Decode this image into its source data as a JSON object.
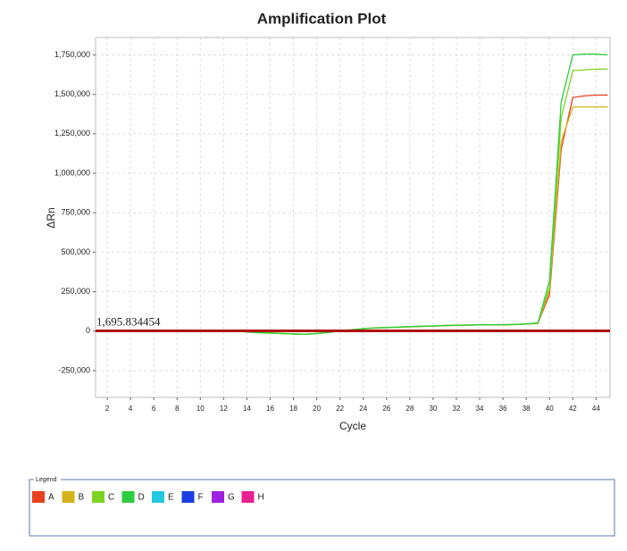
{
  "chart_data": {
    "type": "line",
    "title": "Amplification Plot",
    "x_label": "Cycle",
    "y_label": "ΔRn",
    "x": [
      1,
      2,
      3,
      4,
      5,
      6,
      7,
      8,
      9,
      10,
      11,
      12,
      13,
      14,
      15,
      16,
      17,
      18,
      19,
      20,
      21,
      22,
      23,
      24,
      25,
      26,
      27,
      28,
      29,
      30,
      31,
      32,
      33,
      34,
      35,
      36,
      37,
      38,
      39,
      40,
      41,
      42,
      43,
      44,
      45
    ],
    "series": [
      {
        "name": "A",
        "color": "#e8401c",
        "values": [
          0,
          0,
          0,
          0,
          0,
          0,
          0,
          0,
          0,
          0,
          0,
          0,
          0,
          -5000,
          -10000,
          -12000,
          -15000,
          -18000,
          -20000,
          -15000,
          -8000,
          0,
          8000,
          15000,
          20000,
          22000,
          25000,
          28000,
          30000,
          32000,
          35000,
          37000,
          38000,
          40000,
          40000,
          40000,
          42000,
          45000,
          50000,
          230000,
          1150000,
          1480000,
          1490000,
          1495000,
          1495000
        ]
      },
      {
        "name": "B",
        "color": "#d4b21a",
        "values": [
          0,
          0,
          0,
          0,
          0,
          0,
          0,
          0,
          0,
          0,
          0,
          0,
          0,
          -4000,
          -9000,
          -11000,
          -14000,
          -17000,
          -19000,
          -14000,
          -7000,
          0,
          7000,
          14000,
          19000,
          21000,
          24000,
          27000,
          29000,
          31000,
          34000,
          36000,
          37000,
          39000,
          39000,
          40000,
          41000,
          44000,
          48000,
          260000,
          1200000,
          1420000,
          1420000,
          1420000,
          1420000
        ]
      },
      {
        "name": "C",
        "color": "#7ed321",
        "values": [
          0,
          0,
          0,
          0,
          0,
          0,
          0,
          0,
          0,
          0,
          0,
          0,
          0,
          -6000,
          -11000,
          -13000,
          -16000,
          -19000,
          -21000,
          -16000,
          -9000,
          0,
          9000,
          16000,
          21000,
          23000,
          26000,
          29000,
          31000,
          33000,
          36000,
          38000,
          39000,
          41000,
          41000,
          41000,
          43000,
          46000,
          52000,
          280000,
          1350000,
          1650000,
          1655000,
          1660000,
          1660000
        ]
      },
      {
        "name": "D",
        "color": "#2ecc40",
        "values": [
          0,
          0,
          0,
          0,
          0,
          0,
          0,
          0,
          0,
          0,
          0,
          0,
          0,
          -5000,
          -10000,
          -12000,
          -15000,
          -18000,
          -20000,
          -15000,
          -8000,
          0,
          8000,
          15000,
          20000,
          22000,
          25000,
          28000,
          30000,
          32000,
          35000,
          37000,
          38000,
          40000,
          40000,
          40000,
          42000,
          45000,
          50000,
          320000,
          1450000,
          1750000,
          1755000,
          1755000,
          1750000
        ]
      },
      {
        "name": "E",
        "color": "#22c8e0",
        "values": [
          null,
          null,
          null,
          null,
          null,
          null,
          null,
          null,
          null,
          null,
          null,
          null,
          null,
          null,
          null,
          null,
          null,
          null,
          null,
          null,
          null,
          null,
          null,
          null,
          null,
          null,
          null,
          null,
          null,
          null,
          null,
          null,
          null,
          null,
          null,
          null,
          null,
          null,
          null,
          null,
          null,
          null,
          null,
          null,
          null
        ]
      },
      {
        "name": "F",
        "color": "#1a3ee0",
        "values": [
          null,
          null,
          null,
          null,
          null,
          null,
          null,
          null,
          null,
          null,
          null,
          null,
          null,
          null,
          null,
          null,
          null,
          null,
          null,
          null,
          null,
          null,
          null,
          null,
          null,
          null,
          null,
          null,
          null,
          null,
          null,
          null,
          null,
          null,
          null,
          null,
          null,
          null,
          null,
          null,
          null,
          null,
          null,
          null,
          null
        ]
      },
      {
        "name": "G",
        "color": "#a020e0",
        "values": [
          null,
          null,
          null,
          null,
          null,
          null,
          null,
          null,
          null,
          null,
          null,
          null,
          null,
          null,
          null,
          null,
          null,
          null,
          null,
          null,
          null,
          null,
          null,
          null,
          null,
          null,
          null,
          null,
          null,
          null,
          null,
          null,
          null,
          null,
          null,
          null,
          null,
          null,
          null,
          null,
          null,
          null,
          null,
          null,
          null
        ]
      },
      {
        "name": "H",
        "color": "#e82090",
        "values": [
          null,
          null,
          null,
          null,
          null,
          null,
          null,
          null,
          null,
          null,
          null,
          null,
          null,
          null,
          null,
          null,
          null,
          null,
          null,
          null,
          null,
          null,
          null,
          null,
          null,
          null,
          null,
          null,
          null,
          null,
          null,
          null,
          null,
          null,
          null,
          null,
          null,
          null,
          null,
          null,
          null,
          null,
          null,
          null,
          null
        ]
      }
    ],
    "threshold": 1695.834454,
    "threshold_label": "1,695.834454",
    "threshold_color": "#b01010",
    "xlim": [
      1,
      45.2
    ],
    "xticks": [
      2,
      4,
      6,
      8,
      10,
      12,
      14,
      16,
      18,
      20,
      22,
      24,
      26,
      28,
      30,
      32,
      34,
      36,
      38,
      40,
      42,
      44
    ],
    "ylim": [
      -420000,
      1860000
    ],
    "yticks": [
      {
        "value": -250000,
        "label": "-250,000"
      },
      0,
      {
        "value": 250000,
        "label": "250,000"
      },
      {
        "value": 500000,
        "label": "500,000"
      },
      {
        "value": 750000,
        "label": "750,000"
      },
      {
        "value": 1000000,
        "label": "1,000,000"
      },
      {
        "value": 1250000,
        "label": "1,250,000"
      },
      {
        "value": 1500000,
        "label": "1,500,000"
      },
      {
        "value": 1750000,
        "label": "1,750,000"
      }
    ],
    "grid": true,
    "legend_title": "Legend"
  }
}
